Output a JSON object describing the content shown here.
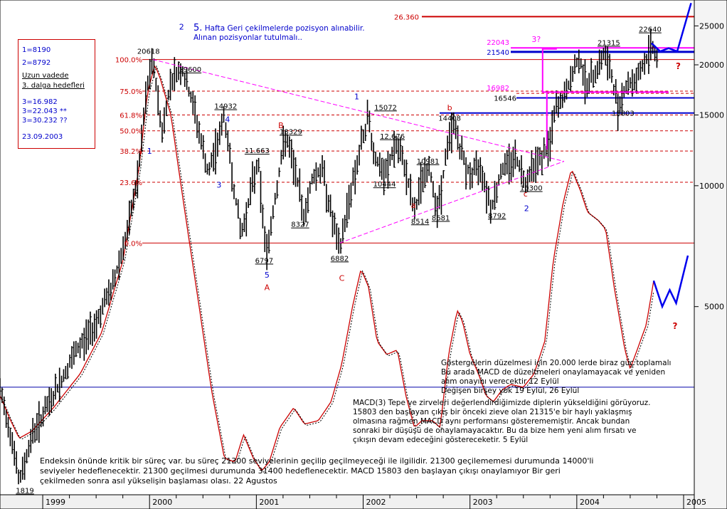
{
  "legend": {
    "lines": [
      "1=8190",
      "2=8792",
      "Uzun vadede",
      "3. dalga hedefleri",
      "3=16.982",
      "3=22.043 **",
      "3=30.232 ??",
      "23.09.2003"
    ]
  },
  "top_note": {
    "number": "5.",
    "line1": "Hafta Geri çekilmelerde pozisyon alınabilir.",
    "line2": "Alınan pozisyonlar tutulmalı.."
  },
  "notes": {
    "block1": [
      "Göstergelerin düzelmesi için 20.000 lerde biraz güç toplamalı",
      "Bu arada MACD de düzeltmeleri onaylamayacak ve yeniden",
      "alım onayını verecektir 12 Eylül",
      "Değişen birşey yok 19 Eylül, 26 Eylül"
    ],
    "block2": [
      "MACD(3) Tepe ve zirveleri değerlendirdiğimizde diplerin yükseldiğini görüyoruz.",
      "15803 den başlayan çıkış bir önceki zieve olan 21315'e bir haylı yaklaşmış",
      "olmasına rağmen MACD aynı performansı gösterememiştir. Ancak bundan",
      "sonraki bir düşüşü de onaylamayacaktır. Bu da bize hem yeni alım fırsatı ve",
      "çıkışın devam edeceğini göstereceketir. 5 Eylül"
    ],
    "block3": [
      "Endeksin önünde kritik bir süreç var. bu süreç 21300 seviyelerinin geçilip geçilmeyeceği ile ilgilidir. 21300 geçilememesi durumunda 14000'li",
      "seviyeler hedeflenecektir. 21300 geçilmesi durumunda  31400 hedeflenecektir. MACD 15803 den başlayan çıkışı onaylamıyor Bir geri",
      "çekilmeden sonra asıl yükselişin başlaması olası. 22 Agustos"
    ]
  },
  "chart_data": {
    "type": "line",
    "title": "",
    "x_axis": {
      "labels": [
        "1999",
        "2000",
        "2001",
        "2002",
        "2003",
        "2004",
        "2005"
      ],
      "range": [
        1998.6,
        2005.1
      ]
    },
    "y_axis": {
      "scale": "log",
      "tick_labels": [
        25000,
        20000,
        15000,
        10000,
        5000
      ],
      "range": [
        1700,
        29000
      ],
      "position": "right"
    },
    "colors": {
      "price": "#000000",
      "macd": "#cc0000",
      "fib": "#cc0000",
      "pink": "#ff00ff",
      "blue": "#0000cc",
      "wave": "#0000ee"
    },
    "price_waypoints": [
      [
        1998.6,
        3100
      ],
      [
        1998.72,
        2300
      ],
      [
        1998.78,
        1819
      ],
      [
        1998.9,
        2400
      ],
      [
        1999.1,
        3000
      ],
      [
        1999.3,
        3800
      ],
      [
        1999.5,
        4600
      ],
      [
        1999.65,
        5600
      ],
      [
        1999.8,
        7800
      ],
      [
        1999.9,
        11000
      ],
      [
        1999.97,
        17000
      ],
      [
        2000.03,
        20618
      ],
      [
        2000.12,
        13500
      ],
      [
        2000.2,
        18500
      ],
      [
        2000.3,
        19600
      ],
      [
        2000.42,
        15500
      ],
      [
        2000.55,
        10600
      ],
      [
        2000.7,
        14932
      ],
      [
        2000.8,
        9500
      ],
      [
        2000.86,
        7500
      ],
      [
        2000.95,
        9800
      ],
      [
        2001.02,
        11663
      ],
      [
        2001.05,
        8800
      ],
      [
        2001.1,
        6797
      ],
      [
        2001.18,
        9500
      ],
      [
        2001.27,
        13329
      ],
      [
        2001.38,
        10500
      ],
      [
        2001.45,
        8327
      ],
      [
        2001.52,
        10500
      ],
      [
        2001.62,
        11000
      ],
      [
        2001.7,
        8500
      ],
      [
        2001.78,
        6882
      ],
      [
        2001.87,
        9400
      ],
      [
        2001.98,
        12500
      ],
      [
        2002.05,
        15072
      ],
      [
        2002.1,
        12000
      ],
      [
        2002.2,
        10444
      ],
      [
        2002.3,
        12676
      ],
      [
        2002.4,
        11000
      ],
      [
        2002.48,
        8514
      ],
      [
        2002.55,
        10500
      ],
      [
        2002.62,
        10981
      ],
      [
        2002.7,
        8681
      ],
      [
        2002.8,
        13000
      ],
      [
        2002.85,
        14408
      ],
      [
        2002.92,
        12000
      ],
      [
        2003.0,
        10600
      ],
      [
        2003.1,
        11300
      ],
      [
        2003.2,
        8792
      ],
      [
        2003.3,
        11000
      ],
      [
        2003.42,
        11900
      ],
      [
        2003.52,
        10300
      ],
      [
        2003.6,
        11500
      ],
      [
        2003.68,
        11800
      ],
      [
        2003.74,
        12500
      ],
      [
        2003.8,
        15500
      ],
      [
        2003.88,
        16546
      ],
      [
        2003.95,
        18500
      ],
      [
        2004.02,
        21000
      ],
      [
        2004.1,
        17600
      ],
      [
        2004.18,
        19500
      ],
      [
        2004.26,
        21315
      ],
      [
        2004.32,
        19000
      ],
      [
        2004.38,
        15803
      ],
      [
        2004.45,
        17500
      ],
      [
        2004.55,
        18500
      ],
      [
        2004.65,
        20500
      ],
      [
        2004.7,
        22640
      ],
      [
        2004.75,
        21000
      ]
    ],
    "macd_waypoints": [
      [
        1998.6,
        3000
      ],
      [
        1998.7,
        2600
      ],
      [
        1998.78,
        2350
      ],
      [
        1998.9,
        2450
      ],
      [
        1999.1,
        2800
      ],
      [
        1999.35,
        3400
      ],
      [
        1999.55,
        4300
      ],
      [
        1999.75,
        6500
      ],
      [
        1999.9,
        11000
      ],
      [
        1999.98,
        17000
      ],
      [
        2000.05,
        20000
      ],
      [
        2000.1,
        18500
      ],
      [
        2000.2,
        15000
      ],
      [
        2000.32,
        9000
      ],
      [
        2000.45,
        5300
      ],
      [
        2000.58,
        3100
      ],
      [
        2000.7,
        2100
      ],
      [
        2000.8,
        2050
      ],
      [
        2000.88,
        2400
      ],
      [
        2000.97,
        2100
      ],
      [
        2001.05,
        1950
      ],
      [
        2001.12,
        2050
      ],
      [
        2001.22,
        2500
      ],
      [
        2001.35,
        2800
      ],
      [
        2001.45,
        2550
      ],
      [
        2001.58,
        2600
      ],
      [
        2001.7,
        2900
      ],
      [
        2001.8,
        3600
      ],
      [
        2001.9,
        5000
      ],
      [
        2001.98,
        6200
      ],
      [
        2002.05,
        5600
      ],
      [
        2002.13,
        4100
      ],
      [
        2002.22,
        3800
      ],
      [
        2002.32,
        3900
      ],
      [
        2002.4,
        3000
      ],
      [
        2002.48,
        2500
      ],
      [
        2002.55,
        2600
      ],
      [
        2002.65,
        2600
      ],
      [
        2002.72,
        2500
      ],
      [
        2002.8,
        3800
      ],
      [
        2002.88,
        4900
      ],
      [
        2002.93,
        4600
      ],
      [
        2003.0,
        3800
      ],
      [
        2003.08,
        3400
      ],
      [
        2003.15,
        3000
      ],
      [
        2003.22,
        2900
      ],
      [
        2003.3,
        3100
      ],
      [
        2003.38,
        3200
      ],
      [
        2003.5,
        3150
      ],
      [
        2003.6,
        3400
      ],
      [
        2003.7,
        4100
      ],
      [
        2003.78,
        6500
      ],
      [
        2003.87,
        9000
      ],
      [
        2003.95,
        11000
      ],
      [
        2004.03,
        9800
      ],
      [
        2004.1,
        8600
      ],
      [
        2004.2,
        8200
      ],
      [
        2004.27,
        7800
      ],
      [
        2004.35,
        5600
      ],
      [
        2004.45,
        3900
      ],
      [
        2004.5,
        3500
      ],
      [
        2004.58,
        4000
      ],
      [
        2004.65,
        4500
      ],
      [
        2004.72,
        5800
      ]
    ],
    "fibonacci_levels": [
      {
        "label": "100.0%",
        "value": 20618
      },
      {
        "label": "75.0%",
        "value": 17200
      },
      {
        "label": "61.8%",
        "value": 15000
      },
      {
        "label": "50.0%",
        "value": 13700
      },
      {
        "label": "38.2%",
        "value": 12200
      },
      {
        "label": "23.6%",
        "value": 10200
      },
      {
        "label": "0.0%",
        "value": 7200
      }
    ],
    "horizontal_levels": {
      "target_26360": {
        "label": "26.360",
        "value": 26360
      },
      "level_22043": {
        "label": "22043",
        "value": 22043
      },
      "level_21540": {
        "label": "21540",
        "value": 21540
      },
      "level_16982": {
        "label": "16982",
        "value": 16982
      },
      "level_16546": {
        "label": "16546",
        "value": 16546
      },
      "level_15803": {
        "label": "15803",
        "value": 15803
      },
      "macd_zero": {
        "value": 3150
      }
    },
    "price_labels": [
      {
        "text": "20618",
        "x": 2000.03,
        "y": 20618,
        "dx": -6,
        "dy": -8,
        "underline": false
      },
      {
        "text": "19600",
        "x": 2000.3,
        "y": 19600,
        "dx": 12,
        "dy": 5,
        "underline": true
      },
      {
        "text": "14932",
        "x": 2000.7,
        "y": 14932,
        "dx": 2,
        "dy": -10,
        "underline": true
      },
      {
        "text": "11.663",
        "x": 2001.02,
        "y": 11663,
        "dx": -2,
        "dy": -8,
        "underline": true
      },
      {
        "text": "13329",
        "x": 2001.27,
        "y": 13329,
        "dx": 8,
        "dy": -2,
        "underline": true
      },
      {
        "text": "6797",
        "x": 2001.1,
        "y": 6797,
        "dx": -4,
        "dy": 14,
        "underline": true
      },
      {
        "text": "8327",
        "x": 2001.45,
        "y": 8327,
        "dx": -6,
        "dy": 13,
        "underline": true
      },
      {
        "text": "6882",
        "x": 2001.78,
        "y": 6882,
        "dx": 0,
        "dy": 14,
        "underline": true
      },
      {
        "text": "15072",
        "x": 2002.05,
        "y": 15072,
        "dx": 24,
        "dy": -6,
        "underline": true
      },
      {
        "text": "10444",
        "x": 2002.2,
        "y": 10444,
        "dx": 0,
        "dy": 12,
        "underline": true
      },
      {
        "text": "12.676",
        "x": 2002.3,
        "y": 12676,
        "dx": -4,
        "dy": -8,
        "underline": true
      },
      {
        "text": "10981",
        "x": 2002.62,
        "y": 10981,
        "dx": -2,
        "dy": -8,
        "underline": true
      },
      {
        "text": "8514",
        "x": 2002.48,
        "y": 8514,
        "dx": 8,
        "dy": 14,
        "underline": true
      },
      {
        "text": "8681",
        "x": 2002.7,
        "y": 8681,
        "dx": 4,
        "dy": 14,
        "underline": true
      },
      {
        "text": "14408",
        "x": 2002.85,
        "y": 14408,
        "dx": -6,
        "dy": -2,
        "underline": false
      },
      {
        "text": "8792",
        "x": 2003.2,
        "y": 8792,
        "dx": 8,
        "dy": 14,
        "underline": true
      },
      {
        "text": "10300",
        "x": 2003.52,
        "y": 10300,
        "dx": 8,
        "dy": 14,
        "underline": true
      },
      {
        "text": "21315",
        "x": 2004.26,
        "y": 21315,
        "dx": 6,
        "dy": -12,
        "underline": true
      },
      {
        "text": "15803",
        "x": 2004.38,
        "y": 15803,
        "dx": 8,
        "dy": 14,
        "underline": false
      },
      {
        "text": "22640",
        "x": 2004.7,
        "y": 22640,
        "dx": -2,
        "dy": -16,
        "underline": true
      },
      {
        "text": "1819",
        "x": 1998.78,
        "y": 1819,
        "dx": 8,
        "dy": 14,
        "underline": true
      }
    ],
    "wave_labels": [
      {
        "text": "2",
        "x": 2000.3,
        "y": 24500,
        "color": "blue"
      },
      {
        "text": "1",
        "x": 2000.0,
        "y": 12000,
        "color": "blue"
      },
      {
        "text": "4",
        "x": 2000.73,
        "y": 14400,
        "color": "blue"
      },
      {
        "text": "3",
        "x": 2000.65,
        "y": 9900,
        "color": "blue"
      },
      {
        "text": "5",
        "x": 2001.1,
        "y": 5900,
        "color": "blue"
      },
      {
        "text": "A",
        "x": 2001.1,
        "y": 5500,
        "color": "red"
      },
      {
        "text": "B",
        "x": 2001.23,
        "y": 13900,
        "color": "red"
      },
      {
        "text": "C",
        "x": 2001.8,
        "y": 5800,
        "color": "red"
      },
      {
        "text": "1",
        "x": 2001.94,
        "y": 16400,
        "color": "blue"
      },
      {
        "text": "a",
        "x": 2002.47,
        "y": 8800,
        "color": "red"
      },
      {
        "text": "b",
        "x": 2002.81,
        "y": 15400,
        "color": "red"
      },
      {
        "text": "c",
        "x": 2003.52,
        "y": 9400,
        "color": "red"
      },
      {
        "text": "2",
        "x": 2003.53,
        "y": 8650,
        "color": "blue"
      },
      {
        "text": "3?",
        "x": 2003.62,
        "y": 22800,
        "color": "pink"
      }
    ],
    "question_marks": [
      {
        "x": 2004.95,
        "y": 19500
      },
      {
        "x": 2004.92,
        "y": 4400
      }
    ],
    "triangle": [
      [
        2000.03,
        20618
      ],
      [
        2003.88,
        11500
      ],
      [
        2001.78,
        7200
      ]
    ],
    "pink_box": {
      "x1": 2003.68,
      "x2": 2004.86,
      "y_top": 21900,
      "y_bottom": 17100
    },
    "projection_price": [
      [
        2004.7,
        22640
      ],
      [
        2004.78,
        21600
      ],
      [
        2004.86,
        22000
      ],
      [
        2004.94,
        21600
      ],
      [
        2005.07,
        28500
      ]
    ],
    "projection_macd": [
      [
        2004.72,
        5800
      ],
      [
        2004.8,
        5000
      ],
      [
        2004.87,
        5500
      ],
      [
        2004.93,
        5100
      ],
      [
        2005.04,
        6700
      ]
    ]
  }
}
